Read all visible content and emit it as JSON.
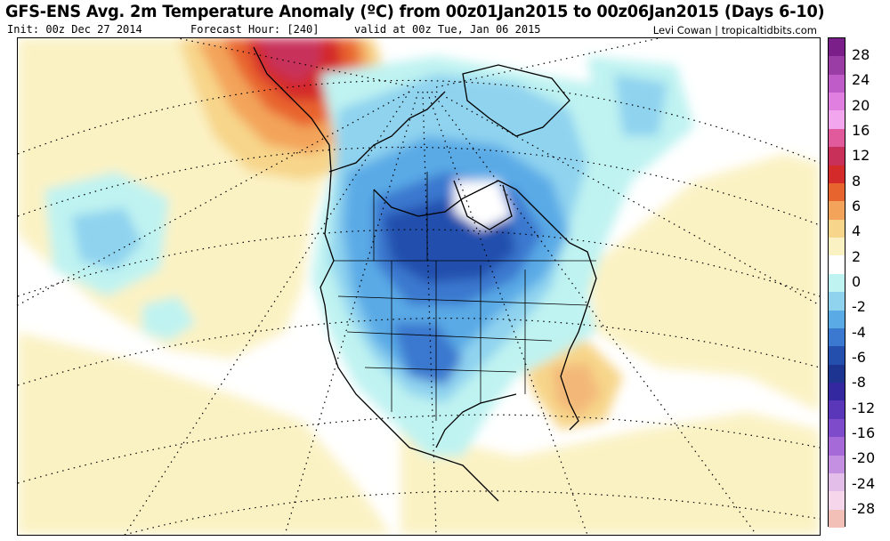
{
  "header": {
    "title": "GFS-ENS Avg. 2m Temperature Anomaly (ºC) from 00z01Jan2015 to 00z06Jan2015 (Days 6-10)",
    "init": "Init: 00z Dec 27 2014",
    "forecast_hour": "Forecast Hour: [240]",
    "valid": "valid at 00z Tue, Jan 06 2015",
    "credit": "Levi Cowan | tropicaltidbits.com"
  },
  "colorbar": {
    "unit": "ºC",
    "labels": [
      "28",
      "24",
      "20",
      "16",
      "12",
      "8",
      "6",
      "4",
      "2",
      "0",
      "-2",
      "-4",
      "-6",
      "-8",
      "-12",
      "-16",
      "-20",
      "-24",
      "-28"
    ],
    "colors": [
      "#7a1f8a",
      "#9a3ea6",
      "#c05cc8",
      "#e07fe0",
      "#f2a6ee",
      "#e05a9c",
      "#c8305a",
      "#d42a2a",
      "#e8642e",
      "#f3a45a",
      "#f7d58a",
      "#fbf2c4",
      "#ffffff",
      "#bff3f1",
      "#8fd3ef",
      "#5aaae6",
      "#3b78cf",
      "#244fad",
      "#1d3590",
      "#3428a0",
      "#5a36b8",
      "#7e4ccb",
      "#a56ad8",
      "#c490e2",
      "#e2bee8",
      "#f6d6ea",
      "#f3c0b8"
    ]
  },
  "map": {
    "region": "North America",
    "field": "2m temperature anomaly"
  }
}
